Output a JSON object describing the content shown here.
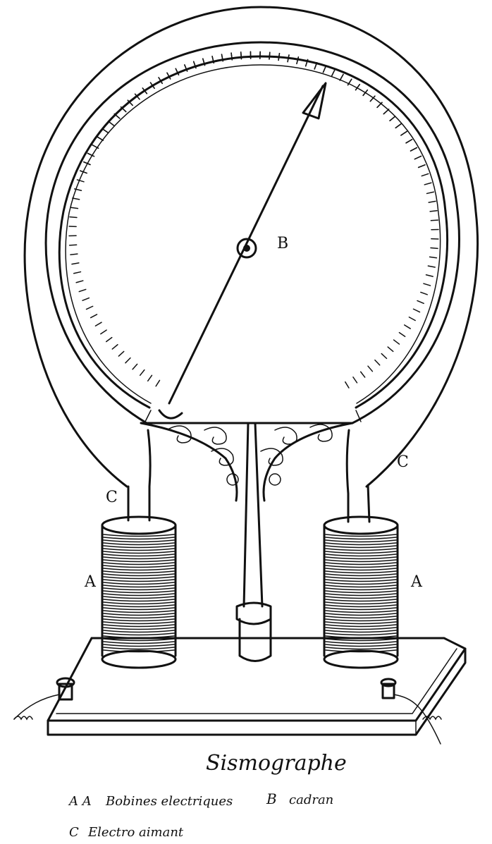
{
  "labels": {
    "pointer": "B",
    "tube_left": "C",
    "tube_right": "C",
    "coil_left": "A",
    "coil_right": "A"
  },
  "caption": {
    "title": "Sismographe",
    "legend_line1_key": "A A",
    "legend_line1_text": "Bobines electriques",
    "legend_line1_key2": "B",
    "legend_line1_text2": "cadran",
    "legend_line2_key": "C",
    "legend_line2_text": "Electro aimant"
  }
}
